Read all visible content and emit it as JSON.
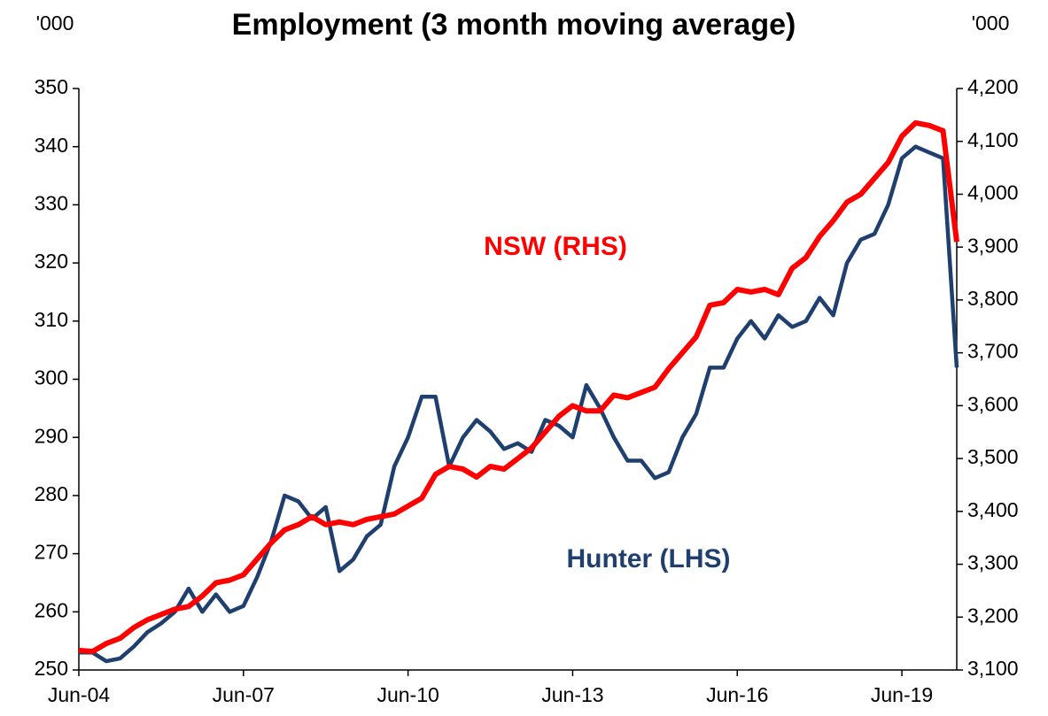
{
  "chart_data": {
    "type": "line",
    "title": "Employment (3 month moving average)",
    "y_unit": "'000",
    "y2_unit": "'000",
    "categories": [
      "Jun-04",
      "Sep-04",
      "Dec-04",
      "Mar-05",
      "Jun-05",
      "Sep-05",
      "Dec-05",
      "Mar-06",
      "Jun-06",
      "Sep-06",
      "Dec-06",
      "Mar-07",
      "Jun-07",
      "Sep-07",
      "Dec-07",
      "Mar-08",
      "Jun-08",
      "Sep-08",
      "Dec-08",
      "Mar-09",
      "Jun-09",
      "Sep-09",
      "Dec-09",
      "Mar-10",
      "Jun-10",
      "Sep-10",
      "Dec-10",
      "Mar-11",
      "Jun-11",
      "Sep-11",
      "Dec-11",
      "Mar-12",
      "Jun-12",
      "Sep-12",
      "Dec-12",
      "Mar-13",
      "Jun-13",
      "Sep-13",
      "Dec-13",
      "Mar-14",
      "Jun-14",
      "Sep-14",
      "Dec-14",
      "Mar-15",
      "Jun-15",
      "Sep-15",
      "Dec-15",
      "Mar-16",
      "Jun-16",
      "Sep-16",
      "Dec-16",
      "Mar-17",
      "Jun-17",
      "Sep-17",
      "Dec-17",
      "Mar-18",
      "Jun-18",
      "Sep-18",
      "Dec-18",
      "Mar-19",
      "Jun-19",
      "Sep-19",
      "Dec-19",
      "Mar-20",
      "Jun-20"
    ],
    "xticks": [
      "Jun-04",
      "Jun-07",
      "Jun-10",
      "Jun-13",
      "Jun-16",
      "Jun-19"
    ],
    "series": [
      {
        "name": "Hunter (LHS)",
        "color": "#1f3f6e",
        "axis": "y",
        "values": [
          253,
          253,
          251.5,
          252,
          254,
          256.5,
          258,
          260,
          264,
          260,
          263,
          260,
          261,
          266,
          272,
          280,
          279,
          276,
          278,
          267,
          269,
          273,
          275,
          285,
          290,
          297,
          297,
          285,
          290,
          293,
          291,
          288,
          289,
          287.5,
          293,
          292,
          290,
          299,
          295,
          290,
          286,
          286,
          283,
          284,
          290,
          294,
          302,
          302,
          307,
          310,
          307,
          311,
          309,
          310,
          314,
          311,
          320,
          324,
          325,
          330,
          338,
          340,
          339,
          338,
          302
        ]
      },
      {
        "name": "NSW (RHS)",
        "color": "#ff0000",
        "axis": "y2",
        "values": [
          3137,
          3135,
          3150,
          3160,
          3180,
          3195,
          3205,
          3215,
          3220,
          3240,
          3265,
          3270,
          3280,
          3310,
          3340,
          3365,
          3375,
          3390,
          3375,
          3380,
          3375,
          3385,
          3390,
          3395,
          3410,
          3425,
          3470,
          3485,
          3480,
          3465,
          3485,
          3480,
          3500,
          3520,
          3550,
          3580,
          3600,
          3590,
          3590,
          3620,
          3615,
          3625,
          3635,
          3670,
          3700,
          3730,
          3790,
          3795,
          3820,
          3815,
          3820,
          3810,
          3860,
          3880,
          3920,
          3950,
          3985,
          4000,
          4030,
          4060,
          4110,
          4135,
          4130,
          4120,
          3910
        ]
      }
    ],
    "ylim": [
      250,
      350
    ],
    "yticks": [
      250,
      260,
      270,
      280,
      290,
      300,
      310,
      320,
      330,
      340,
      350
    ],
    "y2lim": [
      3100,
      4200
    ],
    "y2ticks": [
      {
        "value": 3100,
        "label": "3,100"
      },
      {
        "value": 3200,
        "label": "3,200"
      },
      {
        "value": 3300,
        "label": "3,300"
      },
      {
        "value": 3400,
        "label": "3,400"
      },
      {
        "value": 3500,
        "label": "3,500"
      },
      {
        "value": 3600,
        "label": "3,600"
      },
      {
        "value": 3700,
        "label": "3,700"
      },
      {
        "value": 3800,
        "label": "3,800"
      },
      {
        "value": 3900,
        "label": "3,900"
      },
      {
        "value": 4000,
        "label": "4,000"
      },
      {
        "value": 4100,
        "label": "4,100"
      },
      {
        "value": 4200,
        "label": "4,200"
      }
    ],
    "grid": false
  }
}
